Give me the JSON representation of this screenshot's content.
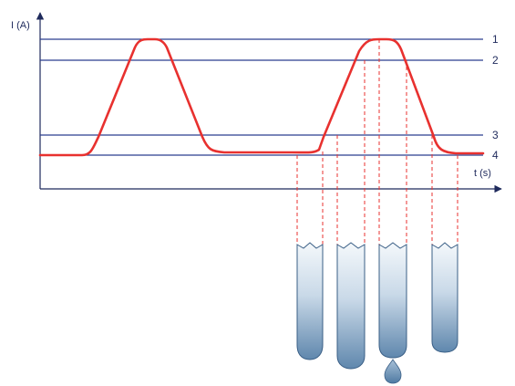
{
  "diagram": {
    "y_axis_label": "I (A)",
    "x_axis_label": "t (s)",
    "levels": [
      {
        "label": "1"
      },
      {
        "label": "2"
      },
      {
        "label": "3"
      },
      {
        "label": "4"
      }
    ],
    "colors": {
      "axis": "#1f2a5c",
      "level_lines": "#2b3f8f",
      "current_curve": "#e8312f",
      "guide_lines": "#e8312f",
      "tube_outline": "#3a5f86",
      "tube_fill_dark": "#5f87ad",
      "tube_fill_light": "#f4f8fb"
    }
  }
}
